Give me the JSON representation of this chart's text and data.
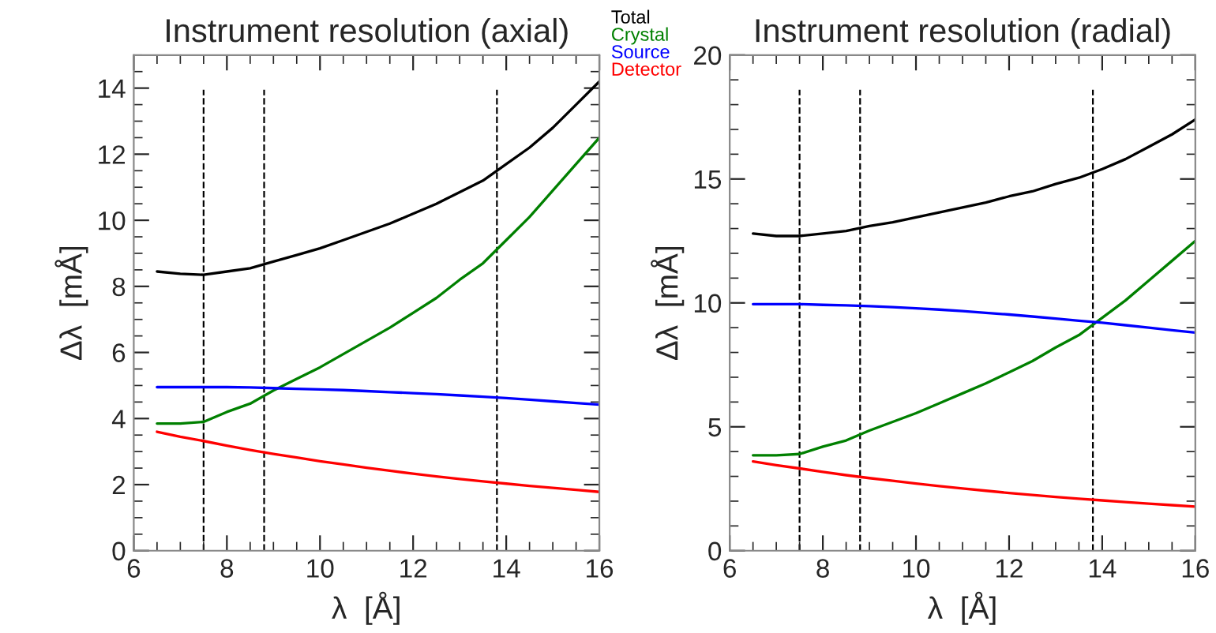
{
  "chart_data": [
    {
      "type": "line",
      "title": "Instrument resolution (axial)",
      "xlabel": "λ  [Å]",
      "ylabel": "Δλ  [mÅ]",
      "x": [
        6.5,
        7,
        7.5,
        8,
        8.5,
        9,
        9.5,
        10,
        10.5,
        11,
        11.5,
        12,
        12.5,
        13,
        13.5,
        14,
        14.5,
        15,
        15.5,
        16
      ],
      "series": [
        {
          "name": "Total",
          "color": "#000000",
          "values": [
            8.45,
            8.38,
            8.35,
            8.45,
            8.55,
            8.75,
            8.95,
            9.15,
            9.4,
            9.65,
            9.9,
            10.2,
            10.5,
            10.85,
            11.2,
            11.7,
            12.2,
            12.8,
            13.5,
            14.2
          ]
        },
        {
          "name": "Crystal",
          "color": "#008000",
          "values": [
            3.85,
            3.85,
            3.9,
            4.2,
            4.45,
            4.85,
            5.2,
            5.55,
            5.95,
            6.35,
            6.75,
            7.2,
            7.65,
            8.2,
            8.7,
            9.4,
            10.1,
            10.9,
            11.7,
            12.5
          ]
        },
        {
          "name": "Source",
          "color": "#0000ff",
          "values": [
            4.95,
            4.95,
            4.95,
            4.95,
            4.94,
            4.92,
            4.9,
            4.88,
            4.86,
            4.83,
            4.8,
            4.77,
            4.74,
            4.7,
            4.66,
            4.62,
            4.57,
            4.52,
            4.47,
            4.42
          ]
        },
        {
          "name": "Detector",
          "color": "#ff0000",
          "values": [
            3.6,
            3.45,
            3.32,
            3.18,
            3.05,
            2.93,
            2.82,
            2.71,
            2.61,
            2.51,
            2.42,
            2.33,
            2.25,
            2.17,
            2.1,
            2.03,
            1.96,
            1.9,
            1.84,
            1.78
          ]
        }
      ],
      "xlim": [
        6,
        16
      ],
      "xticks": [
        6,
        8,
        10,
        12,
        14,
        16
      ],
      "ylim": [
        0,
        15
      ],
      "yticks": [
        0,
        2,
        4,
        6,
        8,
        10,
        12,
        14
      ],
      "ref_lines": [
        {
          "axis": "x",
          "value": 7.5,
          "line_style": "dashed",
          "color": "#000000"
        },
        {
          "axis": "x",
          "value": 8.8,
          "line_style": "dashed",
          "color": "#000000"
        },
        {
          "axis": "x",
          "value": 13.8,
          "line_style": "dashed",
          "color": "#000000"
        }
      ],
      "legend": "top right",
      "grid": false,
      "line_style": "solid",
      "marker": "none"
    },
    {
      "type": "line",
      "title": "Instrument resolution (radial)",
      "xlabel": "λ  [Å]",
      "ylabel": "Δλ  [mÅ]",
      "x": [
        6.5,
        7,
        7.5,
        8,
        8.5,
        9,
        9.5,
        10,
        10.5,
        11,
        11.5,
        12,
        12.5,
        13,
        13.5,
        14,
        14.5,
        15,
        15.5,
        16
      ],
      "series": [
        {
          "color": "#000000",
          "values": [
            12.8,
            12.7,
            12.7,
            12.8,
            12.9,
            13.1,
            13.25,
            13.45,
            13.65,
            13.85,
            14.05,
            14.3,
            14.5,
            14.8,
            15.05,
            15.4,
            15.8,
            16.3,
            16.8,
            17.4
          ]
        },
        {
          "color": "#008000",
          "values": [
            3.85,
            3.85,
            3.9,
            4.2,
            4.45,
            4.85,
            5.2,
            5.55,
            5.95,
            6.35,
            6.75,
            7.2,
            7.65,
            8.2,
            8.7,
            9.4,
            10.1,
            10.9,
            11.7,
            12.5
          ]
        },
        {
          "color": "#0000ff",
          "values": [
            9.95,
            9.95,
            9.95,
            9.92,
            9.9,
            9.87,
            9.83,
            9.78,
            9.73,
            9.67,
            9.6,
            9.53,
            9.45,
            9.37,
            9.28,
            9.2,
            9.1,
            9.0,
            8.9,
            8.8
          ]
        },
        {
          "color": "#ff0000",
          "values": [
            3.6,
            3.45,
            3.32,
            3.18,
            3.05,
            2.93,
            2.82,
            2.71,
            2.61,
            2.51,
            2.42,
            2.33,
            2.25,
            2.17,
            2.1,
            2.03,
            1.96,
            1.9,
            1.84,
            1.78
          ]
        }
      ],
      "xlim": [
        6,
        16
      ],
      "xticks": [
        6,
        8,
        10,
        12,
        14,
        16
      ],
      "ylim": [
        0,
        20
      ],
      "yticks": [
        0,
        5,
        10,
        15,
        20
      ],
      "ref_lines": [
        {
          "axis": "x",
          "value": 7.5,
          "line_style": "dashed",
          "color": "#000000"
        },
        {
          "axis": "x",
          "value": 8.8,
          "line_style": "dashed",
          "color": "#000000"
        },
        {
          "axis": "x",
          "value": 13.8,
          "line_style": "dashed",
          "color": "#000000"
        }
      ],
      "grid": false,
      "line_style": "solid",
      "marker": "none"
    }
  ]
}
